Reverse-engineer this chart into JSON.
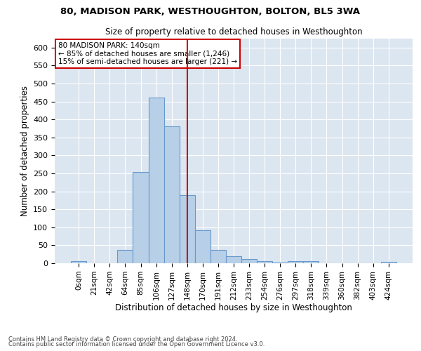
{
  "title": "80, MADISON PARK, WESTHOUGHTON, BOLTON, BL5 3WA",
  "subtitle": "Size of property relative to detached houses in Westhoughton",
  "xlabel": "Distribution of detached houses by size in Westhoughton",
  "ylabel": "Number of detached properties",
  "bar_labels": [
    "0sqm",
    "21sqm",
    "42sqm",
    "64sqm",
    "85sqm",
    "106sqm",
    "127sqm",
    "148sqm",
    "170sqm",
    "191sqm",
    "212sqm",
    "233sqm",
    "254sqm",
    "276sqm",
    "297sqm",
    "318sqm",
    "339sqm",
    "360sqm",
    "382sqm",
    "403sqm",
    "424sqm"
  ],
  "bar_values": [
    5,
    0,
    0,
    37,
    253,
    460,
    380,
    190,
    92,
    37,
    20,
    12,
    5,
    2,
    5,
    5,
    0,
    0,
    0,
    0,
    4
  ],
  "bar_color": "#b8cfe8",
  "bar_edge_color": "#6699cc",
  "background_color": "#dce6f1",
  "property_label": "80 MADISON PARK: 140sqm",
  "annotation_line1": "← 85% of detached houses are smaller (1,246)",
  "annotation_line2": "15% of semi-detached houses are larger (221) →",
  "vline_color": "#cc0000",
  "vline_x": 7,
  "ylim": [
    0,
    625
  ],
  "yticks": [
    0,
    50,
    100,
    150,
    200,
    250,
    300,
    350,
    400,
    450,
    500,
    550,
    600
  ],
  "footnote1": "Contains HM Land Registry data © Crown copyright and database right 2024.",
  "footnote2": "Contains public sector information licensed under the Open Government Licence v3.0.",
  "figsize": [
    6.0,
    5.0
  ],
  "dpi": 100
}
